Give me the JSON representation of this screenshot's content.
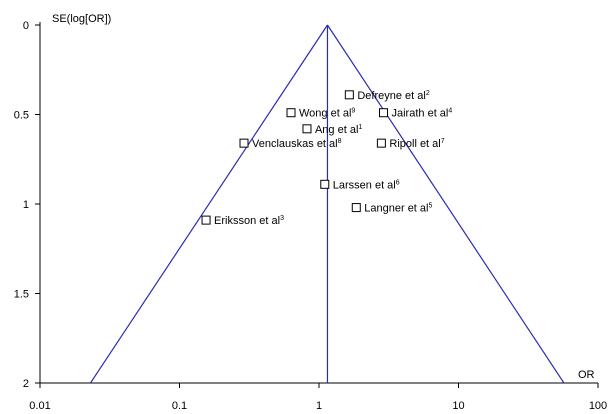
{
  "chart_data": {
    "type": "scatter",
    "title": "",
    "xlabel": "OR",
    "ylabel": "SE(log[OR])",
    "x_scale": "log",
    "xlim": [
      0.01,
      100
    ],
    "ylim": [
      0,
      2
    ],
    "y_inverted": true,
    "grid": false,
    "legend": "none",
    "x_ticks": [
      "0.01",
      "0.1",
      "1",
      "10",
      "100"
    ],
    "y_ticks": [
      "0",
      "0.5",
      "1",
      "1.5",
      "2"
    ],
    "pooled_or": 1.15,
    "funnel": {
      "apex": {
        "x": 1.15,
        "y": 0
      },
      "left_base": {
        "x": 0.023,
        "y": 2
      },
      "right_base": {
        "x": 57,
        "y": 2
      }
    },
    "line_color": "#2a2ab8",
    "marker": "open-square",
    "points": [
      {
        "label": "Defreyne et al",
        "sup": "2",
        "x": 1.65,
        "y": 0.39
      },
      {
        "label": "Wong et al",
        "sup": "9",
        "x": 0.63,
        "y": 0.49
      },
      {
        "label": "Jairath et al",
        "sup": "4",
        "x": 2.9,
        "y": 0.49
      },
      {
        "label": "Ang et al",
        "sup": "1",
        "x": 0.82,
        "y": 0.58
      },
      {
        "label": "Venclauskas et al",
        "sup": "8",
        "x": 0.29,
        "y": 0.66
      },
      {
        "label": "Ripoll et al",
        "sup": "7",
        "x": 2.8,
        "y": 0.66
      },
      {
        "label": "Larssen et al",
        "sup": "6",
        "x": 1.1,
        "y": 0.89
      },
      {
        "label": "Langner et al",
        "sup": "5",
        "x": 1.85,
        "y": 1.02
      },
      {
        "label": "Eriksson et al",
        "sup": "3",
        "x": 0.155,
        "y": 1.09
      }
    ]
  }
}
